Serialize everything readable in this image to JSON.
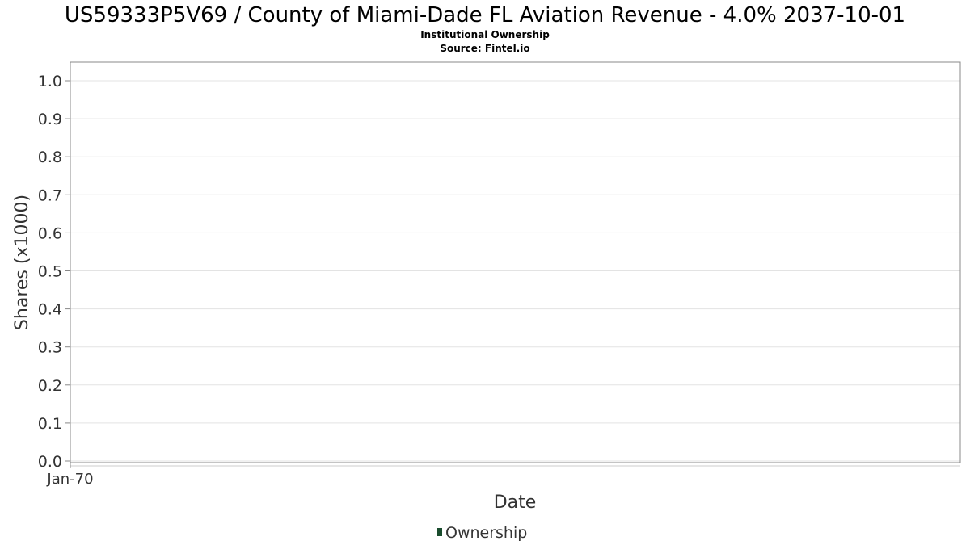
{
  "chart_data": {
    "type": "bar",
    "title": "US59333P5V69 / County of Miami-Dade FL Aviation Revenue - 4.0% 2037-10-01",
    "subtitle": "Institutional Ownership",
    "source": "Source: Fintel.io",
    "xlabel": "Date",
    "ylabel": "Shares (x1000)",
    "ylim": [
      0,
      1.0
    ],
    "y_ticks": [
      "0.0",
      "0.1",
      "0.2",
      "0.3",
      "0.4",
      "0.5",
      "0.6",
      "0.7",
      "0.8",
      "0.9",
      "1.0"
    ],
    "x_ticks": [
      "Jan-70"
    ],
    "grid": true,
    "legend_position": "bottom-center",
    "series": [
      {
        "name": "Ownership",
        "color": "#1a4d2e",
        "x": [],
        "values": []
      }
    ]
  }
}
